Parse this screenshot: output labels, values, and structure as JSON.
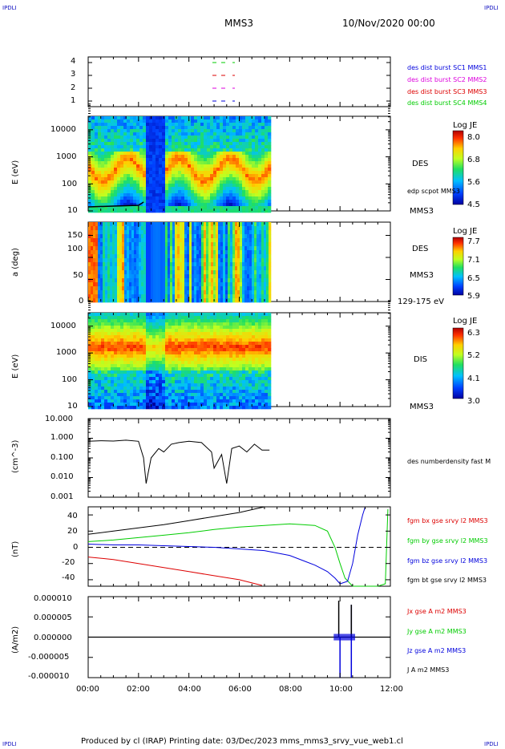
{
  "header": {
    "corner_label": "IPDLI",
    "spacecraft": "MMS3",
    "date": "10/Nov/2020 00:00"
  },
  "footer": {
    "text": "Produced by cl (IRAP)   Printing date: 03/Dec/2023   mms_mms3_srvy_vue_web1.cl"
  },
  "colors": {
    "blue": "#0000dd",
    "magenta": "#dd00dd",
    "red": "#dd0000",
    "green": "#00cc00",
    "black": "#000000"
  },
  "chart_data": [
    {
      "type": "line",
      "panel": "availability",
      "yticks": [
        "4",
        "3",
        "2",
        "1"
      ],
      "legend": [
        {
          "text": "des dist burst SC1 MMS1",
          "color": "#0000dd"
        },
        {
          "text": "des dist burst SC2 MMS2",
          "color": "#dd00dd"
        },
        {
          "text": "des dist burst SC3 MMS3",
          "color": "#dd0000"
        },
        {
          "text": "des dist burst SC4 MMS4",
          "color": "#00cc00"
        }
      ]
    },
    {
      "type": "heatmap",
      "panel": "des-energy",
      "ylabel": "E (eV)",
      "yticks": [
        "10000",
        "1000",
        "100",
        "10"
      ],
      "side_labels": [
        "DES",
        "edp scpot MMS3",
        "MMS3"
      ],
      "colorbar": {
        "title": "Log JE",
        "ticks": [
          "8.0",
          "6.8",
          "5.6",
          "4.5"
        ]
      }
    },
    {
      "type": "heatmap",
      "panel": "des-pitch",
      "ylabel": "a (deg)",
      "yticks": [
        "150",
        "100",
        "50",
        "0"
      ],
      "side_labels": [
        "DES",
        "MMS3",
        "129-175 eV"
      ],
      "colorbar": {
        "title": "Log JE",
        "ticks": [
          "7.7",
          "7.1",
          "6.5",
          "5.9"
        ]
      }
    },
    {
      "type": "heatmap",
      "panel": "dis-energy",
      "ylabel": "E (eV)",
      "yticks": [
        "10000",
        "1000",
        "100",
        "10"
      ],
      "side_labels": [
        "DIS",
        "MMS3"
      ],
      "colorbar": {
        "title": "Log JE",
        "ticks": [
          "6.3",
          "5.2",
          "4.1",
          "3.0"
        ]
      }
    },
    {
      "type": "line",
      "panel": "density",
      "ylabel": "(cm^-3)",
      "yticks": [
        "10.000",
        "1.000",
        "0.100",
        "0.010",
        "0.001"
      ],
      "legend": [
        {
          "text": "des numberdensity fast M",
          "color": "#000000"
        }
      ],
      "x_hours": [
        0,
        0.5,
        1.0,
        1.5,
        2.0,
        2.2,
        2.3,
        2.5,
        2.8,
        3.0,
        3.3,
        3.6,
        4.0,
        4.5,
        4.9,
        5.0,
        5.3,
        5.5,
        5.7,
        6.0,
        6.3,
        6.6,
        6.9,
        7.2
      ],
      "values": [
        0.7,
        0.75,
        0.72,
        0.8,
        0.7,
        0.1,
        0.005,
        0.1,
        0.3,
        0.2,
        0.5,
        0.6,
        0.7,
        0.6,
        0.2,
        0.03,
        0.15,
        0.005,
        0.3,
        0.4,
        0.2,
        0.5,
        0.25,
        0.25
      ]
    },
    {
      "type": "line",
      "panel": "magnetic-field",
      "ylabel": "(nT)",
      "yticks": [
        "40",
        "20",
        "0",
        "-20",
        "-40"
      ],
      "ylim": [
        -48,
        50
      ],
      "series": [
        {
          "name": "fgm bx gse srvy l2 MMS3",
          "color": "#dd0000",
          "x": [
            0,
            1,
            2,
            3,
            4,
            5,
            6,
            6.9
          ],
          "values": [
            -12,
            -15,
            -20,
            -25,
            -30,
            -35,
            -40,
            -47
          ]
        },
        {
          "name": "fgm by gse srvy l2 MMS3",
          "color": "#00cc00",
          "x": [
            0,
            1,
            2,
            3,
            4,
            5,
            6,
            7,
            8,
            9,
            9.5,
            9.8,
            10,
            10.2,
            10.5,
            10.8,
            11.0,
            11.5,
            11.8,
            11.9
          ],
          "values": [
            7,
            9,
            12,
            15,
            18,
            22,
            25,
            27,
            29,
            27,
            20,
            0,
            -20,
            -38,
            -48,
            -48,
            -48,
            -48,
            -45,
            47
          ]
        },
        {
          "name": "fgm bz gse srvy l2 MMS3",
          "color": "#0000dd",
          "x": [
            0,
            1,
            2,
            3,
            4,
            5,
            6,
            7,
            8,
            9,
            9.5,
            9.8,
            10,
            10.3,
            10.5,
            10.7,
            10.9,
            11.0
          ],
          "values": [
            4,
            3,
            3,
            2,
            1,
            0,
            -2,
            -4,
            -10,
            -22,
            -30,
            -38,
            -45,
            -42,
            -20,
            15,
            40,
            50
          ]
        },
        {
          "name": "fgm bt gse srvy l2 MMS3",
          "color": "#000000",
          "x": [
            0,
            1,
            2,
            3,
            4,
            5,
            6,
            7
          ],
          "values": [
            16,
            20,
            24,
            28,
            33,
            38,
            43,
            50
          ]
        }
      ],
      "zero_line": true
    },
    {
      "type": "line",
      "panel": "current-density",
      "ylabel": "(A/m2)",
      "yticks": [
        "0.000010",
        "0.000005",
        "0.000000",
        "-0.000005",
        "-0.000010"
      ],
      "xticks": [
        "00:00",
        "02:00",
        "04:00",
        "06:00",
        "08:00",
        "10:00",
        "12:00"
      ],
      "legend": [
        {
          "text": "Jx gse A m2 MMS3",
          "color": "#dd0000"
        },
        {
          "text": "Jy gse A m2 MMS3",
          "color": "#00cc00"
        },
        {
          "text": "Jz gse A m2 MMS3",
          "color": "#0000dd"
        },
        {
          "text": "J A m2 MMS3",
          "color": "#000000"
        }
      ]
    }
  ]
}
